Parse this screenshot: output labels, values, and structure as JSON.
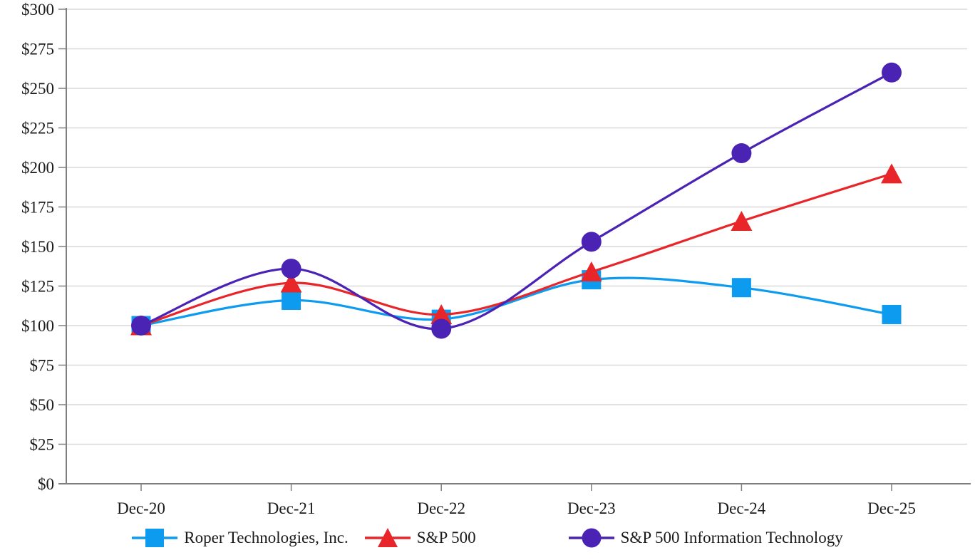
{
  "chart_data": {
    "type": "line",
    "title": "",
    "xlabel": "",
    "ylabel": "",
    "line_style": "smooth",
    "grid": "horizontal",
    "legend_position": "bottom",
    "categories": [
      "Dec-20",
      "Dec-21",
      "Dec-22",
      "Dec-23",
      "Dec-24",
      "Dec-25"
    ],
    "series": [
      {
        "name": "Roper Technologies, Inc.",
        "color": "#0d9bf0",
        "marker": "square",
        "values": [
          100,
          116,
          104,
          129,
          124,
          107
        ]
      },
      {
        "name": "S&P 500",
        "color": "#e8262a",
        "marker": "triangle",
        "values": [
          100,
          127,
          107,
          134,
          166,
          196
        ]
      },
      {
        "name": "S&P 500 Information Technology",
        "color": "#4a22b4",
        "marker": "circle",
        "values": [
          100,
          136,
          98,
          153,
          209,
          260
        ]
      }
    ],
    "ylim": [
      0,
      300
    ],
    "y_tick_step": 25,
    "y_tick_prefix": "$",
    "y_tick_labels": [
      "$0",
      "$25",
      "$50",
      "$75",
      "$100",
      "$125",
      "$150",
      "$175",
      "$200",
      "$225",
      "$250",
      "$275",
      "$300"
    ],
    "axis_color": "#7f7f7f",
    "gridline_color": "#d9d9d9",
    "text_color": "#1a1a1a"
  }
}
